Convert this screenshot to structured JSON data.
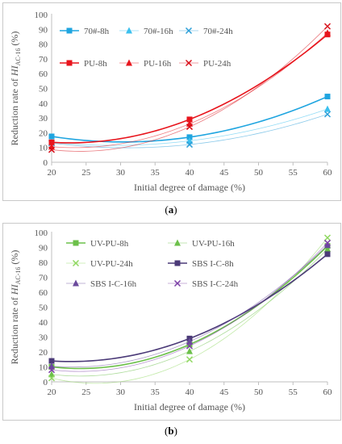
{
  "charts": [
    {
      "caption_prefix": "(",
      "caption_letter": "a",
      "caption_suffix": ")",
      "ylabel_prefix": "Reduction rate of ",
      "ylabel_var": "HI",
      "ylabel_sub": "AC-16",
      "ylabel_suffix": " (%)",
      "xlabel": "Initial degree of damage (%)"
    },
    {
      "caption_prefix": "(",
      "caption_letter": "b",
      "caption_suffix": ")",
      "ylabel_prefix": "Reduction rate of ",
      "ylabel_var": "HI",
      "ylabel_sub": "AC-16",
      "ylabel_suffix": " (%)",
      "xlabel": "Initial degree of damage (%)"
    }
  ],
  "chart_data": [
    {
      "type": "scatter",
      "x_ticks": [
        20,
        25,
        30,
        35,
        40,
        45,
        50,
        55,
        60
      ],
      "xlim": [
        20,
        60
      ],
      "y_ticks": [
        0,
        10,
        20,
        30,
        40,
        50,
        60,
        70,
        80,
        90,
        100
      ],
      "ylim": [
        0,
        100
      ],
      "grid": false,
      "legend": "top-left, 3 columns",
      "series": [
        {
          "name": "70#-8h",
          "marker": "square",
          "color": "#1fa5e0",
          "x": [
            20,
            40,
            60
          ],
          "y": [
            17.5,
            17.0,
            44.5
          ]
        },
        {
          "name": "70#-16h",
          "marker": "triangle",
          "color": "#3bc0ee",
          "x": [
            20,
            40,
            60
          ],
          "y": [
            13.5,
            14.5,
            36.0
          ]
        },
        {
          "name": "70#-24h",
          "marker": "x",
          "color": "#2c9fd8",
          "x": [
            20,
            40,
            60
          ],
          "y": [
            13.0,
            12.0,
            32.5
          ]
        },
        {
          "name": "PU-8h",
          "marker": "square",
          "color": "#e8141c",
          "x": [
            20,
            40,
            60
          ],
          "y": [
            13.5,
            29.0,
            86.5
          ]
        },
        {
          "name": "PU-16h",
          "marker": "triangle",
          "color": "#e8141c",
          "x": [
            20,
            40,
            60
          ],
          "y": [
            10.5,
            26.0,
            87.5
          ]
        },
        {
          "name": "PU-24h",
          "marker": "x",
          "color": "#d80e18",
          "x": [
            20,
            40,
            60
          ],
          "y": [
            8.5,
            24.0,
            92.0
          ]
        }
      ]
    },
    {
      "type": "scatter",
      "x_ticks": [
        20,
        25,
        30,
        35,
        40,
        45,
        50,
        55,
        60
      ],
      "xlim": [
        20,
        60
      ],
      "y_ticks": [
        0,
        10,
        20,
        30,
        40,
        50,
        60,
        70,
        80,
        90,
        100
      ],
      "ylim": [
        0,
        100
      ],
      "grid": false,
      "legend": "top-left, 2 columns",
      "series": [
        {
          "name": "UV-PU-8h",
          "marker": "square",
          "color": "#6cc04a",
          "x": [
            20,
            40,
            60
          ],
          "y": [
            10.0,
            25.0,
            91.0
          ]
        },
        {
          "name": "UV-PU-16h",
          "marker": "triangle",
          "color": "#6cc04a",
          "x": [
            20,
            40,
            60
          ],
          "y": [
            5.0,
            20.5,
            89.0
          ]
        },
        {
          "name": "UV-PU-24h",
          "marker": "x",
          "color": "#8fd860",
          "x": [
            20,
            40,
            60
          ],
          "y": [
            2.5,
            15.0,
            96.5
          ]
        },
        {
          "name": "SBS I-C-8h",
          "marker": "square",
          "color": "#4b3a78",
          "x": [
            20,
            40,
            60
          ],
          "y": [
            14.0,
            29.0,
            85.5
          ]
        },
        {
          "name": "SBS I-C-16h",
          "marker": "triangle",
          "color": "#6a4a9c",
          "x": [
            20,
            40,
            60
          ],
          "y": [
            10.5,
            27.0,
            91.5
          ]
        },
        {
          "name": "SBS I-C-24h",
          "marker": "x",
          "color": "#7b3fa6",
          "x": [
            20,
            40,
            60
          ],
          "y": [
            8.0,
            24.0,
            93.0
          ]
        }
      ]
    }
  ]
}
